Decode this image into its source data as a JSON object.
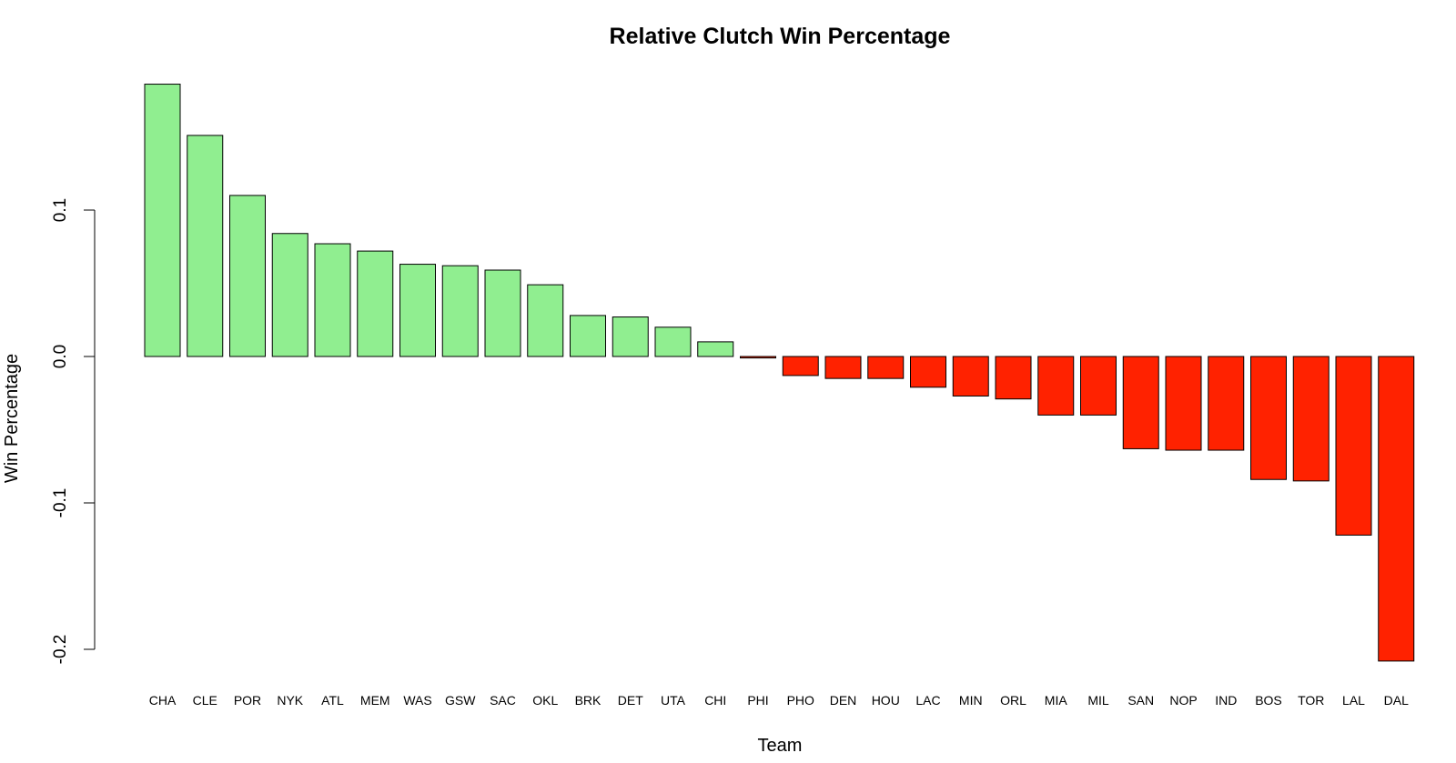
{
  "chart_data": {
    "type": "bar",
    "title": "Relative Clutch Win Percentage",
    "xlabel": "Team",
    "ylabel": "Win Percentage",
    "categories": [
      "CHA",
      "CLE",
      "POR",
      "NYK",
      "ATL",
      "MEM",
      "WAS",
      "GSW",
      "SAC",
      "OKL",
      "BRK",
      "DET",
      "UTA",
      "CHI",
      "PHI",
      "PHO",
      "DEN",
      "HOU",
      "LAC",
      "MIN",
      "ORL",
      "MIA",
      "MIL",
      "SAN",
      "NOP",
      "IND",
      "BOS",
      "TOR",
      "LAL",
      "DAL"
    ],
    "values": [
      0.186,
      0.151,
      0.11,
      0.084,
      0.077,
      0.072,
      0.063,
      0.062,
      0.059,
      0.049,
      0.028,
      0.027,
      0.02,
      0.01,
      -0.001,
      -0.013,
      -0.015,
      -0.015,
      -0.021,
      -0.027,
      -0.029,
      -0.04,
      -0.04,
      -0.063,
      -0.064,
      -0.064,
      -0.084,
      -0.085,
      -0.122,
      -0.208
    ],
    "yticks": [
      "0.1",
      "0.0",
      "-0.1",
      "-0.2"
    ],
    "ytick_values": [
      0.1,
      0.0,
      -0.1,
      -0.2
    ],
    "ylim": [
      -0.208,
      0.186
    ],
    "colors": {
      "positive": "#90EE90",
      "negative": "#FF2200"
    },
    "grid": false,
    "legend": "none"
  }
}
